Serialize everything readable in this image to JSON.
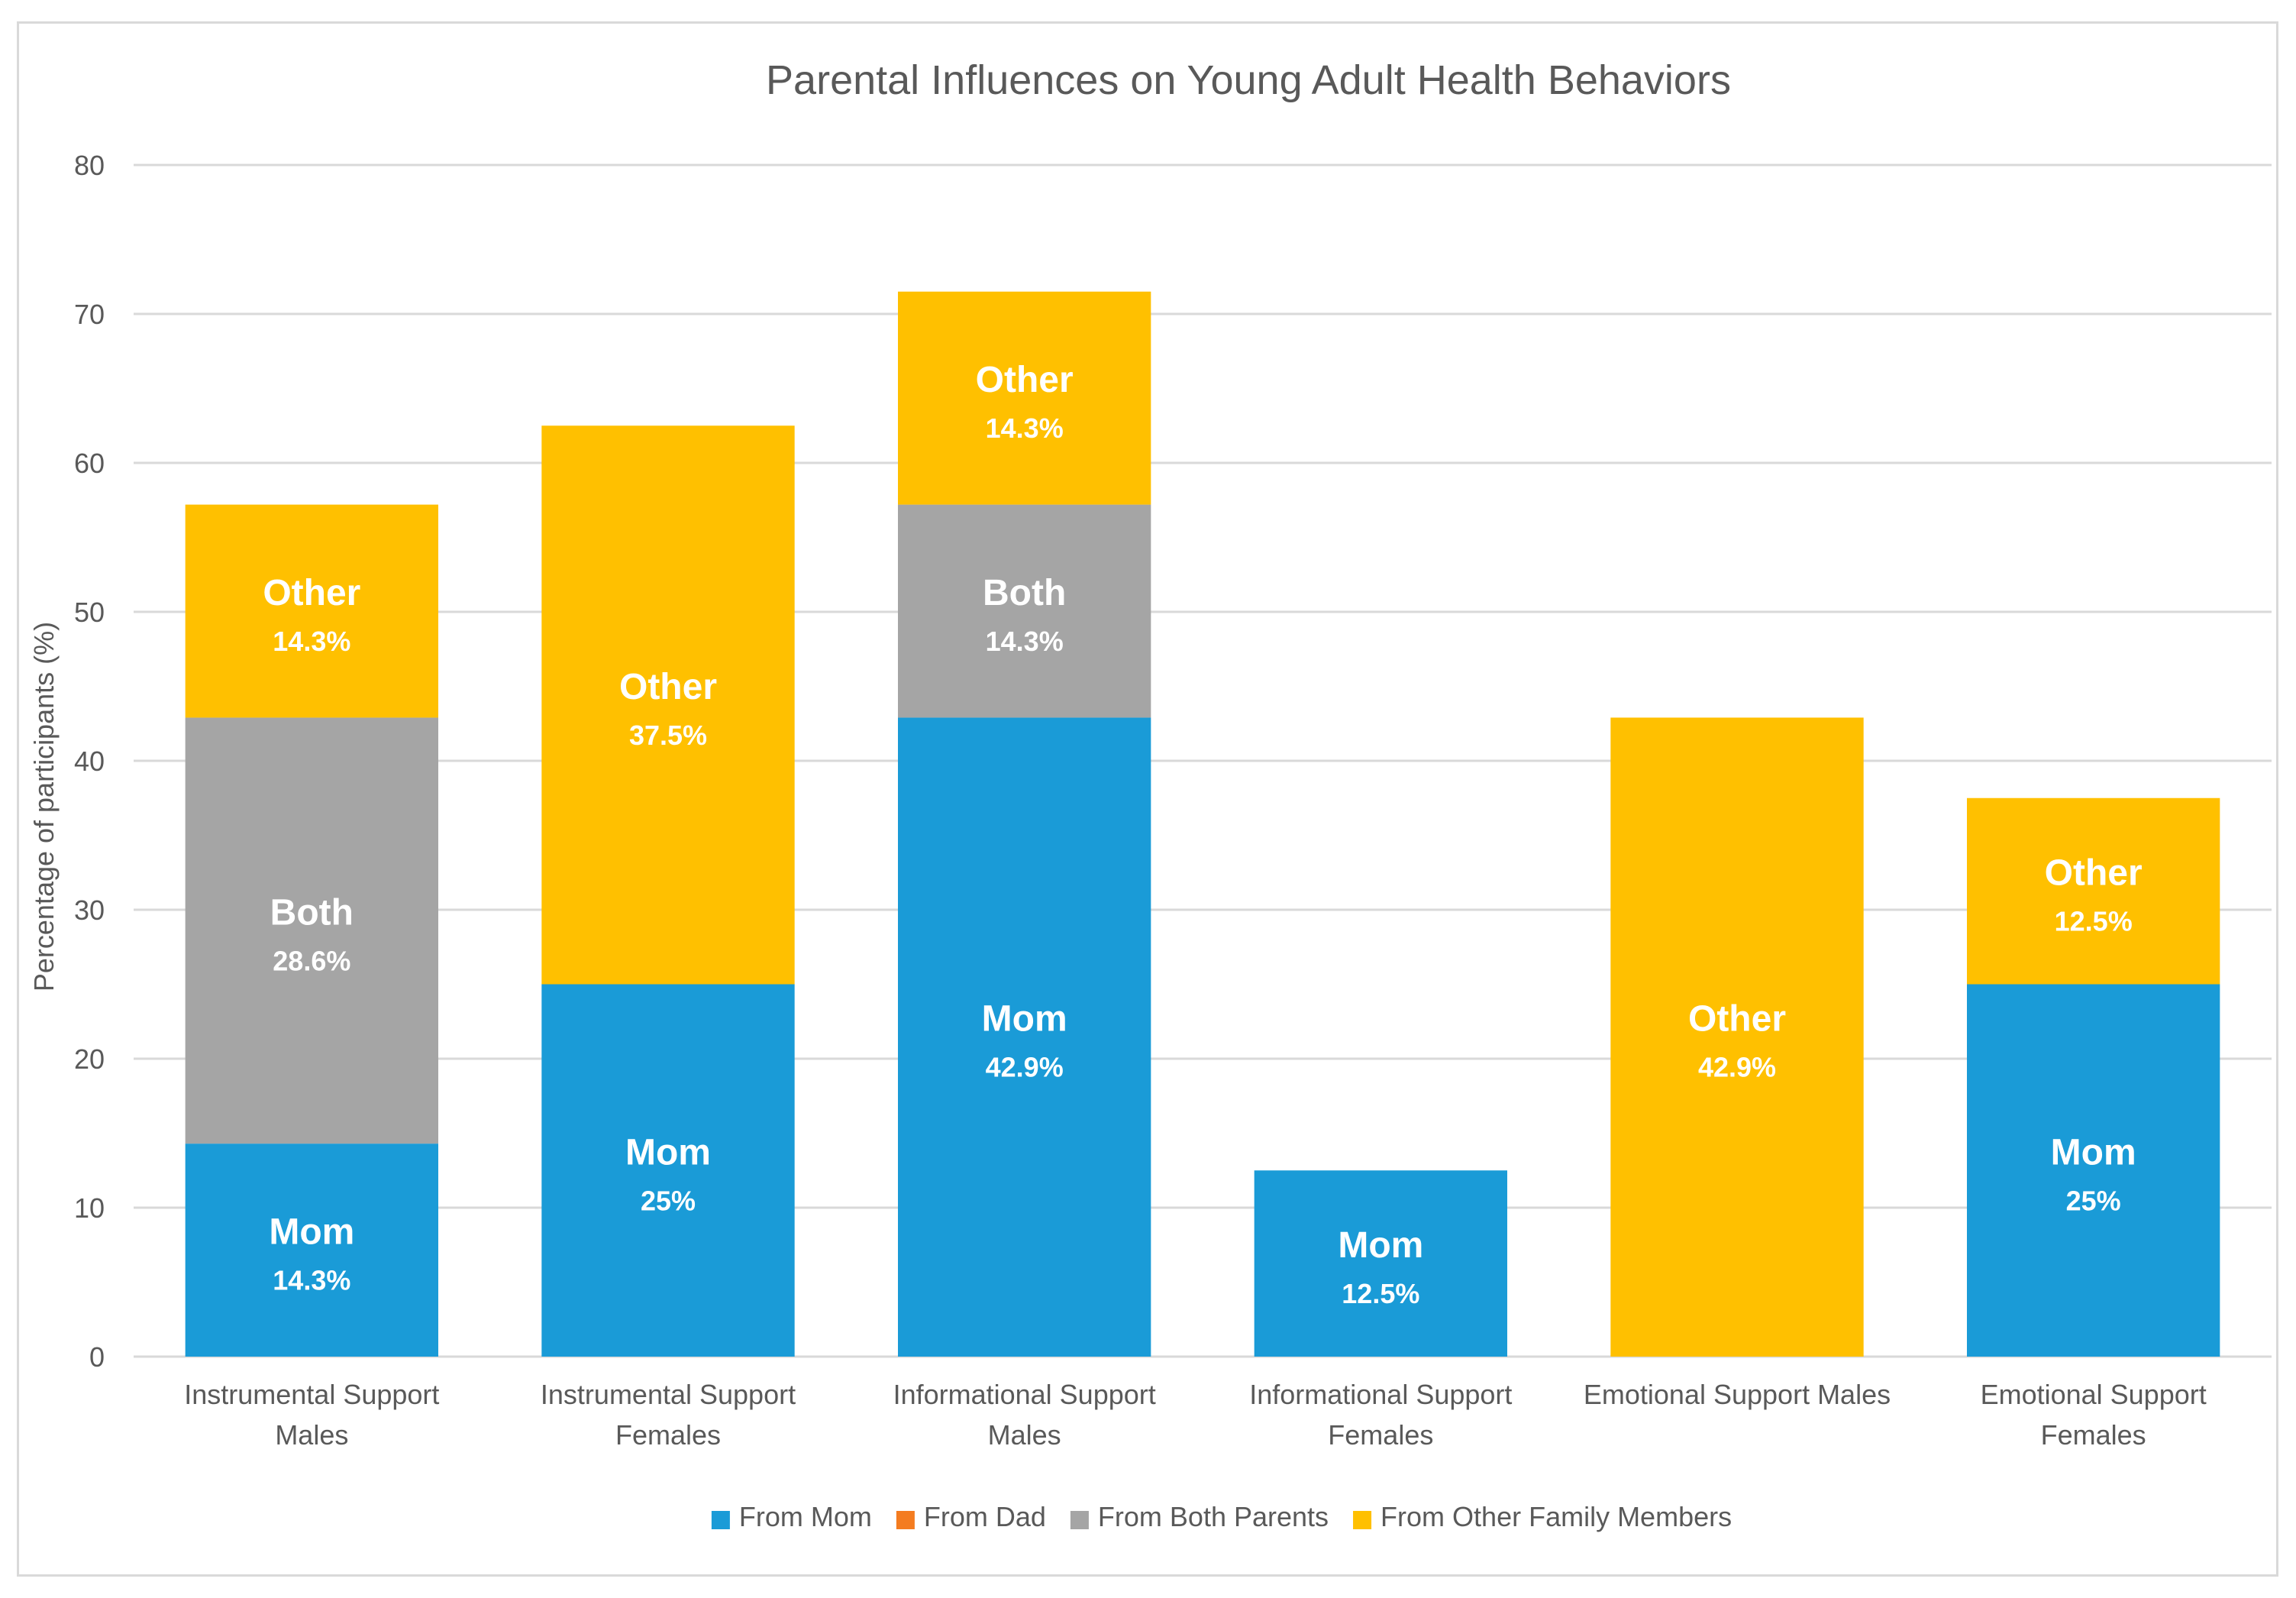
{
  "chart_data": {
    "type": "bar",
    "stacked": true,
    "title": "Parental Influences on Young Adult Health Behaviors",
    "xlabel": "",
    "ylabel": "Percentage of participants (%)",
    "ylim": [
      0,
      80
    ],
    "yticks": [
      0,
      10,
      20,
      30,
      40,
      50,
      60,
      70,
      80
    ],
    "grid": true,
    "legend_position": "bottom",
    "categories": [
      [
        "Instrumental Support",
        "Males"
      ],
      [
        "Instrumental Support",
        "Females"
      ],
      [
        "Informational Support",
        "Males"
      ],
      [
        "Informational Support",
        "Females"
      ],
      [
        "Emotional Support Males"
      ],
      [
        "Emotional Support",
        "Females"
      ]
    ],
    "series": [
      {
        "name": "From Mom",
        "color": "#1a9bd7",
        "values": [
          14.3,
          25,
          42.9,
          12.5,
          0,
          25
        ]
      },
      {
        "name": "From Dad",
        "color": "#f47c20",
        "values": [
          0,
          0,
          0,
          0,
          0,
          0
        ]
      },
      {
        "name": "From Both Parents",
        "color": "#a5a5a5",
        "values": [
          28.6,
          0,
          14.3,
          0,
          0,
          0
        ]
      },
      {
        "name": "From Other Family Members",
        "color": "#ffc000",
        "values": [
          14.3,
          37.5,
          14.3,
          0,
          42.9,
          12.5
        ]
      }
    ],
    "segment_labels": [
      [
        {
          "series": 0,
          "name": "Mom",
          "value": "14.3%"
        },
        {
          "series": 2,
          "name": "Both",
          "value": "28.6%"
        },
        {
          "series": 3,
          "name": "Other",
          "value": "14.3%"
        }
      ],
      [
        {
          "series": 0,
          "name": "Mom",
          "value": "25%"
        },
        {
          "series": 3,
          "name": "Other",
          "value": "37.5%"
        }
      ],
      [
        {
          "series": 0,
          "name": "Mom",
          "value": "42.9%"
        },
        {
          "series": 2,
          "name": "Both",
          "value": "14.3%"
        },
        {
          "series": 3,
          "name": "Other",
          "value": "14.3%"
        }
      ],
      [
        {
          "series": 0,
          "name": "Mom",
          "value": "12.5%"
        }
      ],
      [
        {
          "series": 3,
          "name": "Other",
          "value": "42.9%"
        }
      ],
      [
        {
          "series": 0,
          "name": "Mom",
          "value": "25%"
        },
        {
          "series": 3,
          "name": "Other",
          "value": "12.5%"
        }
      ]
    ]
  }
}
